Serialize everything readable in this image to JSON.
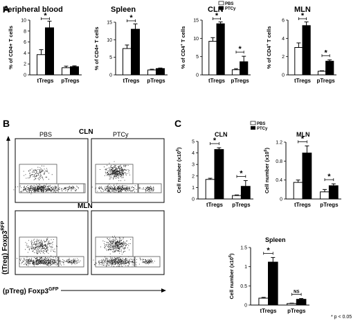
{
  "panel_labels": [
    "A",
    "B",
    "C"
  ],
  "legend": {
    "open": "PBS",
    "filled": "PTCy"
  },
  "footnote": "* p < 0.05",
  "flow": {
    "col_labels": [
      "PBS",
      "PTCy"
    ],
    "row_labels": [
      "CLN",
      "MLN"
    ],
    "y_axis_label": "(tTreg) Foxp3",
    "y_axis_sup": "RFP",
    "x_axis_label": "(pTreg) Foxp3",
    "x_axis_sup": "GFP"
  },
  "chart_data": [
    {
      "id": "a-pb",
      "type": "bar",
      "title": "Peripheral blood",
      "categories": [
        "tTregs",
        "pTregs"
      ],
      "series": [
        {
          "name": "PBS",
          "values": [
            3.7,
            1.3
          ],
          "errors": [
            0.9,
            0.3
          ]
        },
        {
          "name": "PTCy",
          "values": [
            8.6,
            1.5
          ],
          "errors": [
            1.2,
            0.15
          ]
        }
      ],
      "ylabel": "% of CD4+ T cells",
      "ylabel_sup": "",
      "ylim": [
        0,
        10
      ],
      "yticks": [
        0,
        2,
        4,
        6,
        8,
        10
      ],
      "sig": [
        "*",
        ""
      ]
    },
    {
      "id": "a-spl",
      "type": "bar",
      "title": "Spleen",
      "categories": [
        "tTregs",
        "pTregs"
      ],
      "series": [
        {
          "name": "PBS",
          "values": [
            7.5,
            1.4
          ],
          "errors": [
            1.0,
            0.2
          ]
        },
        {
          "name": "PTCy",
          "values": [
            13.0,
            1.8
          ],
          "errors": [
            1.5,
            0.15
          ]
        }
      ],
      "ylabel": "% of CD4+ T cells",
      "ylabel_sup": "",
      "ylim": [
        0,
        15
      ],
      "yticks": [
        0,
        5,
        10,
        15
      ],
      "sig": [
        "*",
        ""
      ]
    },
    {
      "id": "a-cln",
      "type": "bar",
      "title": "CLN",
      "categories": [
        "tTregs",
        "pTregs"
      ],
      "series": [
        {
          "name": "PBS",
          "values": [
            9.2,
            1.4
          ],
          "errors": [
            1.0,
            0.3
          ]
        },
        {
          "name": "PTCy",
          "values": [
            14.0,
            3.6
          ],
          "errors": [
            0.5,
            1.5
          ]
        }
      ],
      "ylabel": "% of CD4",
      "ylabel_sup": "+",
      "ylabel_tail": " T cells",
      "ylim": [
        0,
        15
      ],
      "yticks": [
        0,
        5,
        10,
        15
      ],
      "sig": [
        "*",
        "*"
      ]
    },
    {
      "id": "a-mln",
      "type": "bar",
      "title": "MLN",
      "categories": [
        "tTregs",
        "pTregs"
      ],
      "series": [
        {
          "name": "PBS",
          "values": [
            3.0,
            0.4
          ],
          "errors": [
            0.5,
            0.05
          ]
        },
        {
          "name": "PTCy",
          "values": [
            5.4,
            1.5
          ],
          "errors": [
            0.4,
            0.15
          ]
        }
      ],
      "ylabel": "% of CD4",
      "ylabel_sup": "+",
      "ylabel_tail": " T cells",
      "ylim": [
        0,
        6
      ],
      "yticks": [
        0,
        2,
        4,
        6
      ],
      "sig": [
        "*",
        "*"
      ]
    },
    {
      "id": "c-cln",
      "type": "bar",
      "title": "CLN",
      "categories": [
        "tTregs",
        "pTregs"
      ],
      "series": [
        {
          "name": "PBS",
          "values": [
            1.7,
            0.3
          ],
          "errors": [
            0.1,
            0.05
          ]
        },
        {
          "name": "PTCy",
          "values": [
            4.3,
            1.1
          ],
          "errors": [
            0.15,
            0.5
          ]
        }
      ],
      "ylabel": "Cell number (x10",
      "ylabel_sup": "6",
      "ylabel_tail": ")",
      "ylim": [
        0,
        5
      ],
      "yticks": [
        0,
        1,
        2,
        3,
        4,
        5
      ],
      "sig": [
        "*",
        "*"
      ]
    },
    {
      "id": "c-mln",
      "type": "bar",
      "title": "MLN",
      "categories": [
        "tTregs",
        "pTregs"
      ],
      "series": [
        {
          "name": "PBS",
          "values": [
            0.35,
            0.15
          ],
          "errors": [
            0.05,
            0.05
          ]
        },
        {
          "name": "PTCy",
          "values": [
            0.97,
            0.28
          ],
          "errors": [
            0.15,
            0.04
          ]
        }
      ],
      "ylabel": "Cell number (x10",
      "ylabel_sup": "6",
      "ylabel_tail": ")",
      "ylim": [
        0,
        1.2
      ],
      "yticks": [
        0,
        0.4,
        0.8,
        1.2
      ],
      "sig": [
        "*",
        "*"
      ]
    },
    {
      "id": "c-spl",
      "type": "bar",
      "title": "Spleen",
      "categories": [
        "tTregs",
        "pTregs"
      ],
      "series": [
        {
          "name": "PBS",
          "values": [
            0.18,
            0.04
          ],
          "errors": [
            0.02,
            0.01
          ]
        },
        {
          "name": "PTCy",
          "values": [
            1.12,
            0.15
          ],
          "errors": [
            0.12,
            0.02
          ]
        }
      ],
      "ylabel": "Cell number (x10",
      "ylabel_sup": "6",
      "ylabel_tail": ")",
      "ylim": [
        0,
        1.5
      ],
      "yticks": [
        0,
        0.5,
        1.0,
        1.5
      ],
      "sig": [
        "*",
        "NS"
      ]
    }
  ]
}
